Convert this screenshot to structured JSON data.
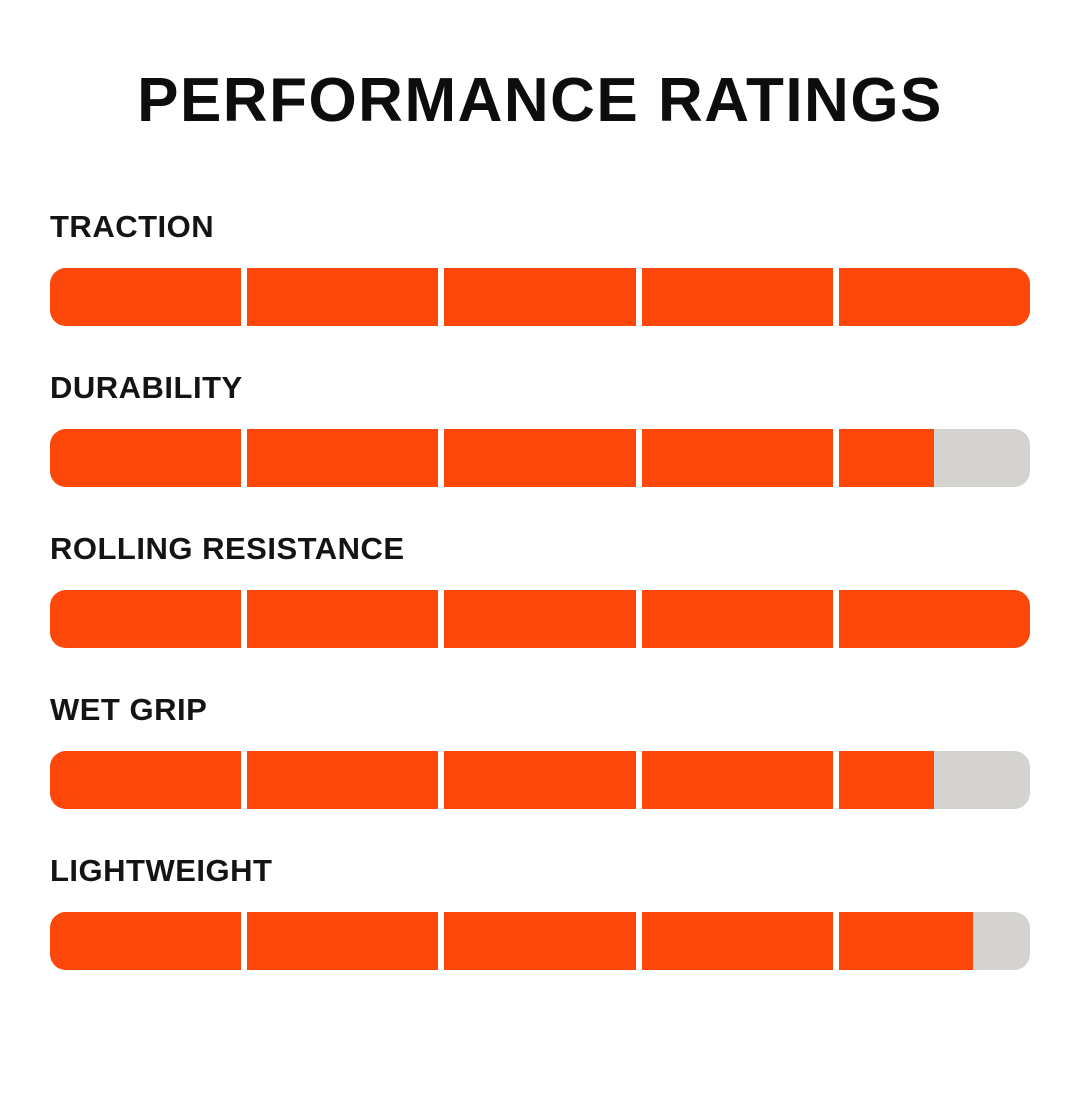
{
  "page": {
    "background": "#FFFFFF"
  },
  "chart_data": {
    "type": "bar",
    "orientation": "horizontal",
    "title": "PERFORMANCE RATINGS",
    "categories": [
      "TRACTION",
      "DURABILITY",
      "ROLLING RESISTANCE",
      "WET GRIP",
      "LIGHTWEIGHT"
    ],
    "values": [
      5,
      4.5,
      5,
      4.5,
      4.7
    ],
    "value_max": 5,
    "segments_per_bar": 5,
    "grid": "off",
    "legend": "none",
    "axis_labels": "none",
    "bar_color": "#FB4709",
    "track_color": "#D5D3D0",
    "title_color": "#0D0D0D",
    "label_color": "#141414"
  }
}
